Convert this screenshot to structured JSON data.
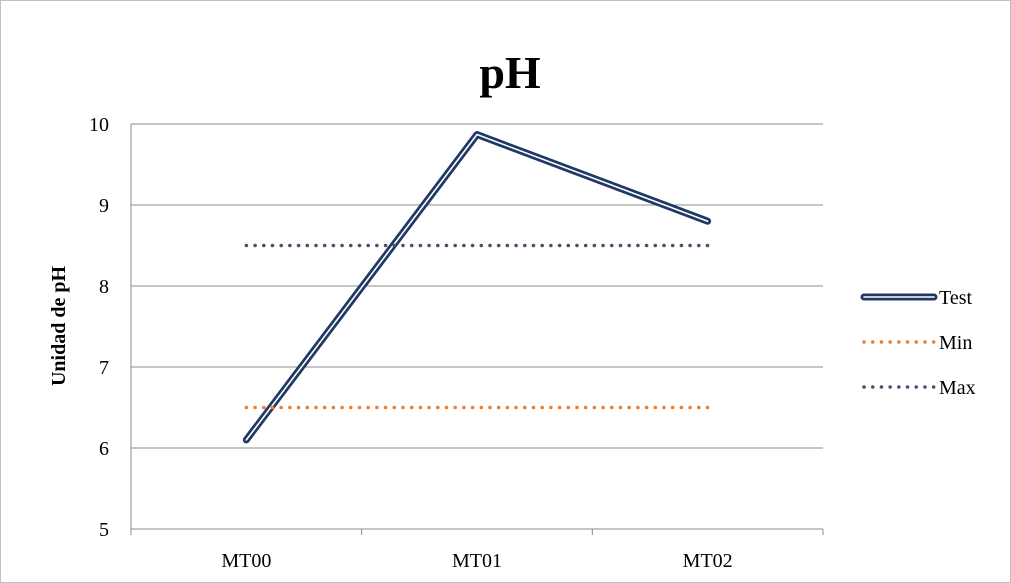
{
  "chart_data": {
    "type": "line",
    "title": "pH",
    "xlabel": "",
    "ylabel": "Unidad de pH",
    "categories": [
      "MT00",
      "MT01",
      "MT02"
    ],
    "ylim": [
      5,
      10
    ],
    "yticks": [
      5,
      6,
      7,
      8,
      9,
      10
    ],
    "grid": true,
    "legend_position": "right",
    "series": [
      {
        "name": "Test",
        "values": [
          6.1,
          9.87,
          8.8
        ],
        "color": "#1f3864",
        "style": "solid-double"
      },
      {
        "name": "Min",
        "values": [
          6.5,
          6.5,
          6.5
        ],
        "color": "#ed7d31",
        "style": "dotted"
      },
      {
        "name": "Max",
        "values": [
          8.5,
          8.5,
          8.5
        ],
        "color": "#44546a",
        "style": "dotted"
      }
    ]
  }
}
